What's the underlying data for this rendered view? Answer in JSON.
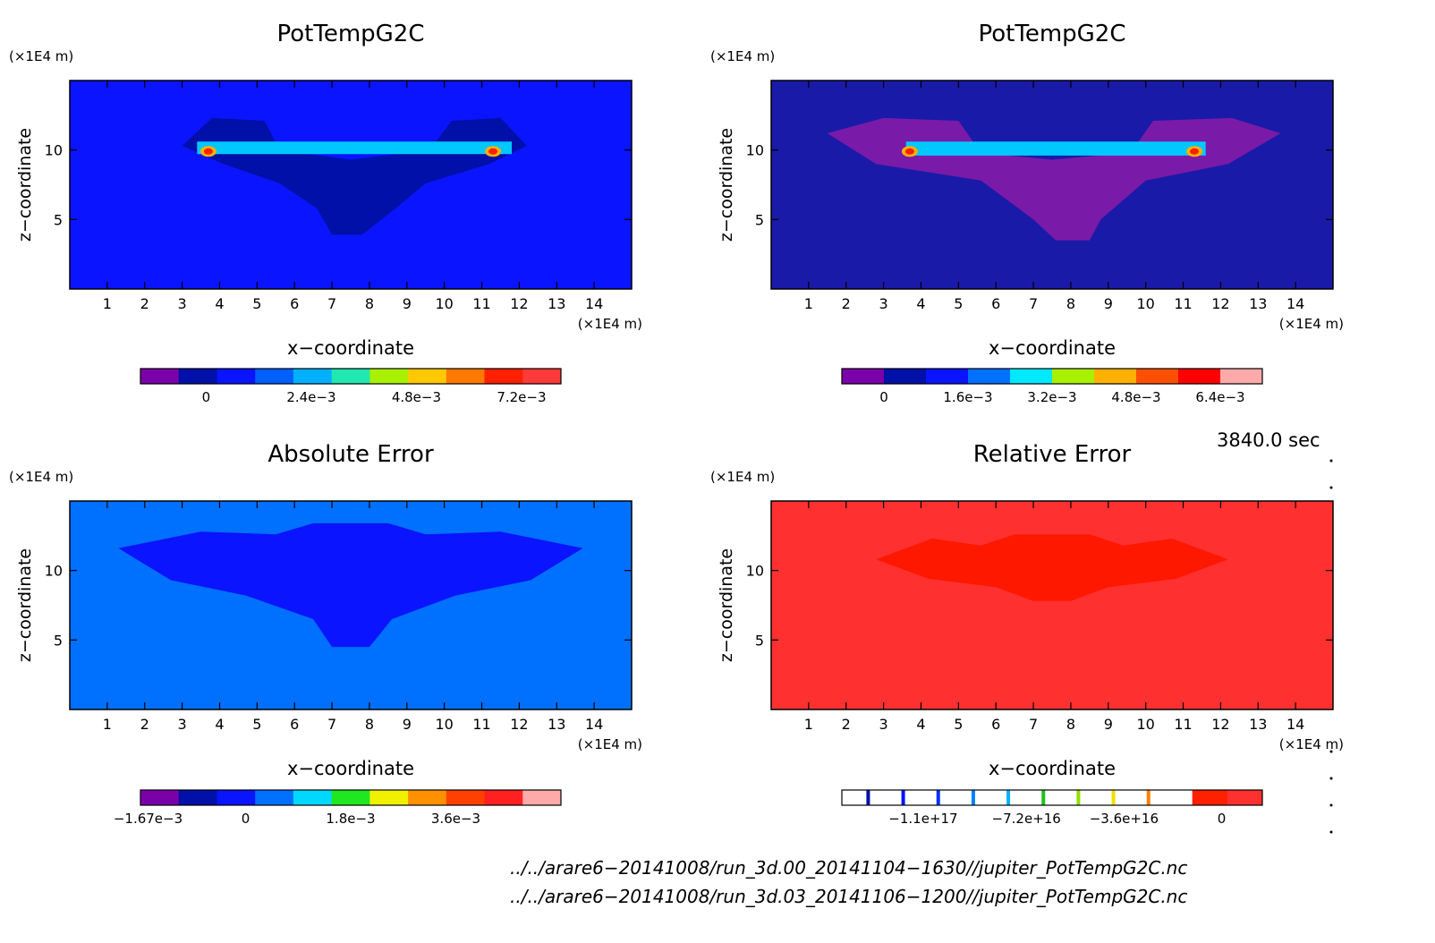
{
  "chart_data": [
    {
      "type": "heatmap",
      "title": "PotTempG2C",
      "xlabel": "x−coordinate",
      "ylabel": "z−coordinate",
      "x_unit": "(×1E4 m)",
      "y_unit": "(×1E4 m)",
      "x_ticks": [
        "1",
        "2",
        "3",
        "4",
        "5",
        "6",
        "7",
        "8",
        "9",
        "10",
        "11",
        "12",
        "13",
        "14"
      ],
      "y_ticks": [
        "5",
        "10"
      ],
      "xlim": [
        0,
        15
      ],
      "ylim": [
        0,
        15
      ],
      "background": "#0a14ff",
      "colorbar": {
        "colors": [
          "#7a00a8",
          "#0010a8",
          "#0a14ff",
          "#0060ff",
          "#00b0ff",
          "#20e8b0",
          "#a8f000",
          "#ffc800",
          "#ff7800",
          "#ff2000",
          "#ff3a3a"
        ],
        "tick_labels": [
          "0",
          "2.4e−3",
          "4.8e−3",
          "7.2e−3"
        ],
        "tick_values": [
          0,
          0.0024,
          0.0048,
          0.0072
        ],
        "range": [
          -0.0015,
          0.0081
        ]
      }
    },
    {
      "type": "heatmap",
      "title": "PotTempG2C",
      "xlabel": "x−coordinate",
      "ylabel": "z−coordinate",
      "x_unit": "(×1E4 m)",
      "y_unit": "(×1E4 m)",
      "x_ticks": [
        "1",
        "2",
        "3",
        "4",
        "5",
        "6",
        "7",
        "8",
        "9",
        "10",
        "11",
        "12",
        "13",
        "14"
      ],
      "y_ticks": [
        "5",
        "10"
      ],
      "xlim": [
        0,
        15
      ],
      "ylim": [
        0,
        15
      ],
      "background": "#1a1aa8",
      "colorbar": {
        "colors": [
          "#7a00a8",
          "#0010a8",
          "#0a14ff",
          "#0070ff",
          "#00e8ff",
          "#a8f000",
          "#ffb000",
          "#ff5000",
          "#ff0000",
          "#ffaaaa"
        ],
        "tick_labels": [
          "0",
          "1.6e−3",
          "3.2e−3",
          "4.8e−3",
          "6.4e−3"
        ],
        "tick_values": [
          0,
          0.0016,
          0.0032,
          0.0048,
          0.0064
        ],
        "range": [
          -0.0008,
          0.0072
        ]
      }
    },
    {
      "type": "heatmap",
      "title": "Absolute Error",
      "xlabel": "x−coordinate",
      "ylabel": "z−coordinate",
      "x_unit": "(×1E4 m)",
      "y_unit": "(×1E4 m)",
      "x_ticks": [
        "1",
        "2",
        "3",
        "4",
        "5",
        "6",
        "7",
        "8",
        "9",
        "10",
        "11",
        "12",
        "13",
        "14"
      ],
      "y_ticks": [
        "5",
        "10"
      ],
      "xlim": [
        0,
        15
      ],
      "ylim": [
        0,
        15
      ],
      "background": "#0070ff",
      "colorbar": {
        "colors": [
          "#7a00a8",
          "#0010a8",
          "#0a14ff",
          "#0070ff",
          "#00d8ff",
          "#20e820",
          "#f0f000",
          "#ff9000",
          "#ff4000",
          "#ff2020",
          "#ffaaaa"
        ],
        "tick_labels": [
          "−1.67e−3",
          "0",
          "1.8e−3",
          "3.6e−3"
        ],
        "tick_values": [
          -0.00167,
          0,
          0.0018,
          0.0036
        ],
        "range": [
          -0.0018,
          0.0054
        ]
      }
    },
    {
      "type": "heatmap",
      "title": "Relative Error",
      "xlabel": "x−coordinate",
      "ylabel": "z−coordinate",
      "x_unit": "(×1E4 m)",
      "y_unit": "(×1E4 m)",
      "x_ticks": [
        "1",
        "2",
        "3",
        "4",
        "5",
        "6",
        "7",
        "8",
        "9",
        "10",
        "11",
        "12",
        "13",
        "14"
      ],
      "y_ticks": [
        "5",
        "10"
      ],
      "xlim": [
        0,
        15
      ],
      "ylim": [
        0,
        15
      ],
      "background": "#ff3030",
      "colorbar": {
        "colors": [
          "#ffffff",
          "#ffffff",
          "#ffffff",
          "#ffffff",
          "#ffffff",
          "#ffffff",
          "#ffffff",
          "#ffffff",
          "#ffffff",
          "#ffffff",
          "#ff2000",
          "#ff3030"
        ],
        "line_colors": [
          "#0010a8",
          "#0010ff",
          "#0030ff",
          "#0080ff",
          "#00b0ff",
          "#20c020",
          "#90e000",
          "#f0e000",
          "#ff8000"
        ],
        "tick_labels": [
          "−1.1e+17",
          "−7.2e+16",
          "−3.6e+16",
          "0"
        ],
        "tick_values": [
          -1.1e+17,
          -7.2e+16,
          -3.6e+16,
          0
        ],
        "range": [
          -1.4e+17,
          1.5e+16
        ]
      }
    }
  ],
  "time_label": "3840.0 sec",
  "file_paths": [
    "../../arare6−20141008/run_3d.00_20141104−1630//jupiter_PotTempG2C.nc",
    "../../arare6−20141008/run_3d.03_20141106−1200//jupiter_PotTempG2C.nc"
  ],
  "colors": {
    "panel1_band": "#00c8ff",
    "panel1_blob": "#0010a8",
    "panel2_blob": "#7a1aa8",
    "panel3_blob": "#0a14ff",
    "panel4_blob": "#ff1800"
  }
}
